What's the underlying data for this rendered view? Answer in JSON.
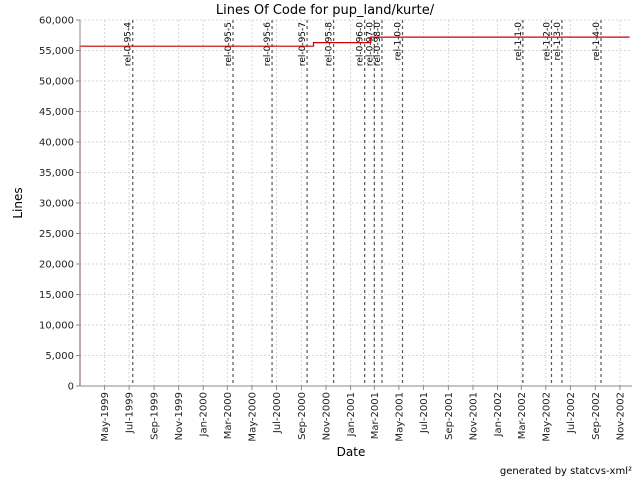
{
  "chart_data": {
    "type": "line",
    "title": "Lines Of Code for pup_land/kurte/",
    "xlabel": "Date",
    "ylabel": "Lines",
    "ylim": [
      0,
      60000
    ],
    "yticks": [
      0,
      5000,
      10000,
      15000,
      20000,
      25000,
      30000,
      35000,
      40000,
      45000,
      50000,
      55000,
      60000
    ],
    "ytick_labels": [
      "0",
      "5,000",
      "10,000",
      "15,000",
      "20,000",
      "25,000",
      "30,000",
      "35,000",
      "40,000",
      "45,000",
      "50,000",
      "55,000",
      "60,000"
    ],
    "xlim": [
      "1999-03-01",
      "2002-12-01"
    ],
    "xticks": [
      "1999-05-01",
      "1999-07-01",
      "1999-09-01",
      "1999-11-01",
      "2000-01-01",
      "2000-03-01",
      "2000-05-01",
      "2000-07-01",
      "2000-09-01",
      "2000-11-01",
      "2001-01-01",
      "2001-03-01",
      "2001-05-01",
      "2001-07-01",
      "2001-09-01",
      "2001-11-01",
      "2002-01-01",
      "2002-03-01",
      "2002-05-01",
      "2002-07-01",
      "2002-09-01",
      "2002-11-01"
    ],
    "xtick_labels": [
      "May-1999",
      "Jul-1999",
      "Sep-1999",
      "Nov-1999",
      "Jan-2000",
      "Mar-2000",
      "May-2000",
      "Jul-2000",
      "Sep-2000",
      "Nov-2000",
      "Jan-2001",
      "Mar-2001",
      "May-2001",
      "Jul-2001",
      "Sep-2001",
      "Nov-2001",
      "Jan-2002",
      "Mar-2002",
      "May-2002",
      "Jul-2002",
      "Sep-2002",
      "Nov-2002"
    ],
    "grid": true,
    "series": [
      {
        "color": "#cc0000",
        "points": [
          {
            "x": "1999-03-01",
            "y": 0
          },
          {
            "x": "1999-03-01",
            "y": 55700
          },
          {
            "x": "2000-10-01",
            "y": 55700
          },
          {
            "x": "2000-10-01",
            "y": 56300
          },
          {
            "x": "2001-02-20",
            "y": 56300
          },
          {
            "x": "2001-02-20",
            "y": 57200
          },
          {
            "x": "2002-11-25",
            "y": 57200
          }
        ]
      }
    ],
    "version_markers": [
      {
        "label": "rel-0-95-4",
        "date": "1999-07-10"
      },
      {
        "label": "rel-0-95-5",
        "date": "2000-03-15"
      },
      {
        "label": "rel-0-95-6",
        "date": "2000-06-20"
      },
      {
        "label": "rel-0-95-7",
        "date": "2000-09-15"
      },
      {
        "label": "rel-0-95-8",
        "date": "2000-11-20"
      },
      {
        "label": "rel-0-96-0",
        "date": "2001-02-05"
      },
      {
        "label": "rel-0-97-0",
        "date": "2001-03-01"
      },
      {
        "label": "rel-0-98-0",
        "date": "2001-03-20"
      },
      {
        "label": "rel-1-0-0",
        "date": "2001-05-10"
      },
      {
        "label": "rel-1-1-0",
        "date": "2002-03-05"
      },
      {
        "label": "rel-1-2-0",
        "date": "2002-05-15"
      },
      {
        "label": "rel-1-3-0",
        "date": "2002-06-10"
      },
      {
        "label": "rel-1-4-0",
        "date": "2002-09-15"
      }
    ]
  },
  "footer": "generated by statcvs-xml²"
}
